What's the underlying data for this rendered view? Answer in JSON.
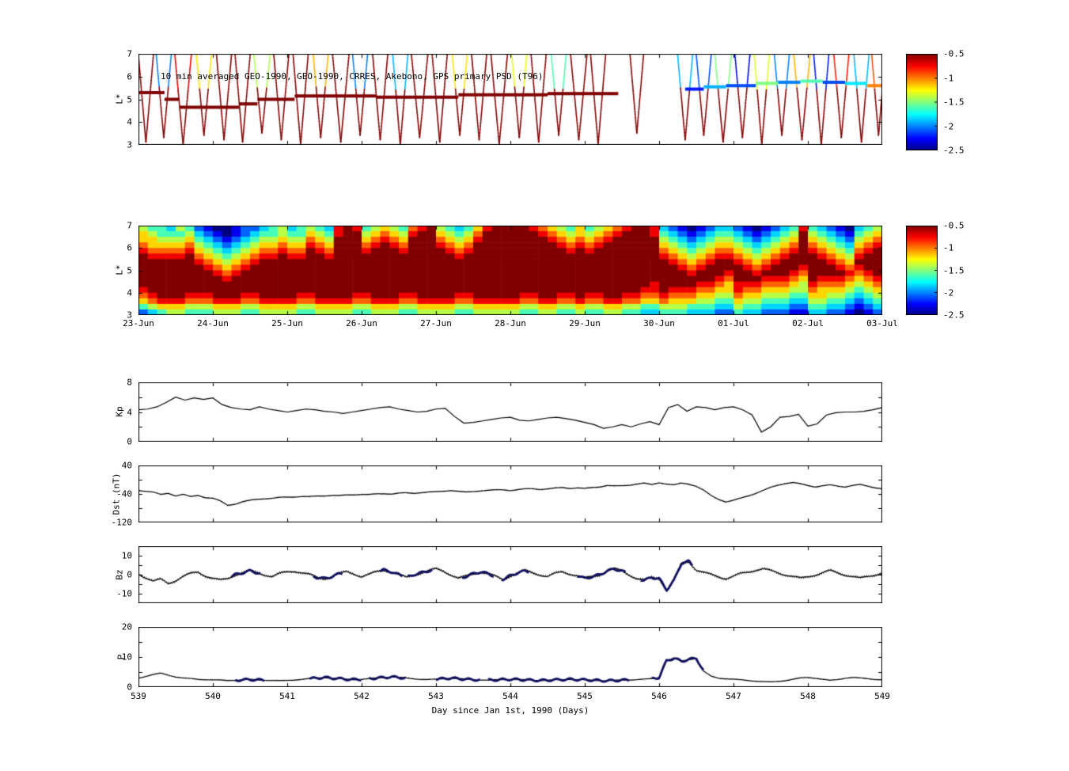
{
  "figure": {
    "background": "#ffffff"
  },
  "colormap": {
    "name": "jet",
    "range": [
      -2.5,
      -0.5
    ]
  },
  "colorbars": [
    {
      "ticks": [
        -0.5,
        -1,
        -1.5,
        -2,
        -2.5
      ]
    },
    {
      "ticks": [
        -0.5,
        -1,
        -1.5,
        -2,
        -2.5
      ]
    }
  ],
  "chart_data": [
    {
      "id": "psd_scatter",
      "type": "scatter",
      "title": "10 min averaged GEO-1990, GEO-1990, CRRES, Akebono, GPS  primary PSD (T96)",
      "ylabel": "L*",
      "ylim": [
        3,
        7
      ],
      "yticks": [
        7,
        6,
        5,
        4,
        3
      ],
      "ytick_marks": [
        3,
        4,
        5,
        6,
        7
      ],
      "xlim": [
        539,
        549
      ],
      "band_segments": [
        [
          539.0,
          539.35,
          5.3,
          -0.5
        ],
        [
          539.35,
          539.55,
          5.0,
          -0.5
        ],
        [
          539.55,
          540.35,
          4.65,
          -0.5
        ],
        [
          540.35,
          540.6,
          4.8,
          -0.5
        ],
        [
          540.6,
          541.1,
          5.0,
          -0.5
        ],
        [
          541.1,
          542.2,
          5.15,
          -0.5
        ],
        [
          542.2,
          543.3,
          5.1,
          -0.5
        ],
        [
          543.3,
          544.5,
          5.2,
          -0.5
        ],
        [
          544.5,
          545.45,
          5.25,
          -0.5
        ],
        [
          546.35,
          546.6,
          5.45,
          -2.2
        ],
        [
          546.6,
          546.9,
          5.55,
          -1.9
        ],
        [
          546.9,
          547.3,
          5.6,
          -2.1
        ],
        [
          547.3,
          547.6,
          5.7,
          -1.5
        ],
        [
          547.6,
          547.9,
          5.75,
          -2.0
        ],
        [
          547.9,
          548.2,
          5.8,
          -1.6
        ],
        [
          548.2,
          548.5,
          5.75,
          -2.1
        ],
        [
          548.5,
          548.8,
          5.7,
          -1.8
        ],
        [
          548.8,
          549.0,
          5.6,
          -1.0
        ]
      ],
      "orbits": [
        [
          539.1,
          0.11,
          3.1,
          -0.5,
          -0.5
        ],
        [
          539.34,
          0.11,
          3.3,
          -0.5,
          -2.0
        ],
        [
          539.6,
          0.12,
          3.0,
          -0.5,
          -0.7
        ],
        [
          539.88,
          0.11,
          3.4,
          -0.5,
          -1.2
        ],
        [
          540.15,
          0.11,
          3.2,
          -0.5,
          -0.5
        ],
        [
          540.4,
          0.11,
          3.1,
          -0.5,
          -0.5
        ],
        [
          540.66,
          0.12,
          3.5,
          -0.5,
          -1.4
        ],
        [
          540.92,
          0.11,
          3.2,
          -0.5,
          -0.5
        ],
        [
          541.18,
          0.11,
          3.0,
          -0.5,
          -0.5
        ],
        [
          541.45,
          0.11,
          3.3,
          -0.5,
          -1.1
        ],
        [
          541.72,
          0.12,
          3.1,
          -0.5,
          -0.5
        ],
        [
          541.98,
          0.11,
          3.4,
          -0.5,
          -2.0
        ],
        [
          542.25,
          0.11,
          3.2,
          -0.5,
          -0.5
        ],
        [
          542.52,
          0.11,
          3.0,
          -0.5,
          -1.9
        ],
        [
          542.78,
          0.12,
          3.3,
          -0.5,
          -0.5
        ],
        [
          543.05,
          0.11,
          3.1,
          -0.5,
          -0.5
        ],
        [
          543.32,
          0.11,
          3.4,
          -0.5,
          -1.2
        ],
        [
          543.58,
          0.11,
          3.2,
          -0.5,
          -0.5
        ],
        [
          543.85,
          0.12,
          3.0,
          -0.5,
          -0.5
        ],
        [
          544.12,
          0.11,
          3.3,
          -0.5,
          -1.3
        ],
        [
          544.38,
          0.11,
          3.1,
          -0.5,
          -0.5
        ],
        [
          544.65,
          0.11,
          3.4,
          -0.5,
          -1.6
        ],
        [
          544.92,
          0.12,
          3.2,
          -0.5,
          -0.5
        ],
        [
          545.18,
          0.11,
          3.0,
          -0.5,
          -0.5
        ],
        [
          545.7,
          0.1,
          3.5,
          -0.5,
          -0.5
        ],
        [
          546.35,
          0.11,
          3.2,
          -0.5,
          -1.9
        ],
        [
          546.6,
          0.11,
          3.4,
          -0.5,
          -2.1
        ],
        [
          546.86,
          0.12,
          3.1,
          -0.5,
          -1.5
        ],
        [
          547.12,
          0.11,
          3.3,
          -0.5,
          -2.3
        ],
        [
          547.38,
          0.11,
          3.0,
          -0.5,
          -1.3
        ],
        [
          547.65,
          0.11,
          3.4,
          -0.5,
          -2.0
        ],
        [
          547.92,
          0.12,
          3.2,
          -0.5,
          -1.1
        ],
        [
          548.18,
          0.11,
          3.0,
          -0.5,
          -2.2
        ],
        [
          548.45,
          0.11,
          3.3,
          -0.5,
          -0.8
        ],
        [
          548.72,
          0.11,
          3.1,
          -0.5,
          -1.9
        ],
        [
          548.95,
          0.1,
          3.4,
          -0.5,
          -0.9
        ]
      ]
    },
    {
      "id": "psd_heatmap",
      "type": "heatmap",
      "ylabel": "L*",
      "ylim": [
        3,
        7
      ],
      "yticks": [
        7,
        6,
        5,
        4,
        3
      ],
      "ytick_marks": [
        3,
        4,
        5,
        6,
        7
      ],
      "xlim": [
        539,
        549
      ],
      "xtick_labels": [
        "23-Jun",
        "24-Jun",
        "25-Jun",
        "26-Jun",
        "27-Jun",
        "28-Jun",
        "29-Jun",
        "30-Jun",
        "01-Jul",
        "02-Jul",
        "03-Jul"
      ],
      "value_min": -2.5,
      "value_max": -0.5,
      "rows": [
        "54435421001223453454389845654789543468999987654645678998321012332101234843210345",
        "65444532101234454465489956765899654579999998765656789998432123443212345954321456",
        "66555643212345565576599967876999765689999999876767899999543234554323456965432567",
        "76666754323456676687699978987999876799999999987878999999654345665434567976543678",
        "87777865434567787798799989998999987899999999998989999999765456776545678987654789",
        "98888976545678898899899999999999998999999999999999999999876567887656789998765899",
        "99999987656789999999999999999999999999999999999999999999987678998767899999876999",
        "99999998767899999999999999999999999999999999999999999999998789999878999899987899",
        "99999999878999999999999999999999999999999999999999999999999899989989998799998789",
        "99999999989999999999999999999999999999999999999999999999999999879998887698887678",
        "99999999999999999999999999999999999999999999999999999998999988768887776587776567",
        "89999999999999999999999999999999999999999999999999999988988877668776665576665456",
        "78999888999889999889999889998899998899999889988988998877877766557665554466554345",
        "67888777888778888778888778887788887788888778877877887766766655446554443355443234",
        "45666555666556666556666556665566665566666556655655665544555444335443332244332123",
        "23455444555445555445555445554455554455555445544544554433444333224332221133221012"
      ]
    },
    {
      "id": "kp",
      "type": "line",
      "ylabel": "Kp",
      "ylim": [
        0,
        8
      ],
      "yticks": [
        8,
        4,
        0
      ],
      "ytick_marks": [
        0,
        2,
        4,
        6,
        8
      ],
      "xlim": [
        539,
        549
      ],
      "x0": 539,
      "dx": 0.125,
      "values": [
        4.3,
        4.4,
        4.7,
        5.3,
        6.0,
        5.6,
        5.9,
        5.7,
        5.9,
        5.0,
        4.6,
        4.4,
        4.3,
        4.7,
        4.4,
        4.2,
        4.0,
        4.2,
        4.4,
        4.3,
        4.1,
        4.0,
        3.8,
        4.0,
        4.2,
        4.4,
        4.6,
        4.7,
        4.4,
        4.2,
        4.0,
        4.1,
        4.4,
        4.5,
        3.4,
        2.5,
        2.6,
        2.8,
        3.0,
        3.2,
        3.3,
        2.9,
        2.8,
        3.0,
        3.2,
        3.3,
        3.1,
        2.9,
        2.6,
        2.3,
        1.8,
        2.0,
        2.3,
        2.0,
        2.4,
        2.7,
        2.3,
        4.6,
        5.0,
        4.1,
        4.7,
        4.6,
        4.3,
        4.6,
        4.7,
        4.3,
        3.6,
        1.3,
        2.0,
        3.3,
        3.4,
        3.7,
        2.1,
        2.4,
        3.6,
        3.9,
        4.0,
        4.0,
        4.1,
        4.3,
        4.6
      ]
    },
    {
      "id": "dst",
      "type": "line",
      "ylabel": "Dst (nT)",
      "ylim": [
        -120,
        40
      ],
      "yticks": [
        40,
        -40,
        -120
      ],
      "ytick_marks": [
        40,
        0,
        -40,
        -80,
        -120
      ],
      "xlim": [
        539,
        549
      ],
      "x0": 539,
      "dx": 0.1,
      "values": [
        -30,
        -32,
        -35,
        -42,
        -38,
        -45,
        -41,
        -48,
        -44,
        -50,
        -52,
        -60,
        -72,
        -68,
        -62,
        -58,
        -55,
        -53,
        -52,
        -50,
        -49,
        -48,
        -47,
        -48,
        -46,
        -45,
        -44,
        -45,
        -43,
        -42,
        -41,
        -42,
        -40,
        -39,
        -40,
        -38,
        -37,
        -38,
        -36,
        -35,
        -34,
        -32,
        -30,
        -33,
        -35,
        -33,
        -31,
        -30,
        -29,
        -28,
        -30,
        -28,
        -26,
        -25,
        -27,
        -26,
        -24,
        -22,
        -24,
        -23,
        -25,
        -22,
        -20,
        -16,
        -18,
        -17,
        -15,
        -12,
        -10,
        -14,
        -8,
        -12,
        -15,
        -10,
        -12,
        -18,
        -30,
        -45,
        -55,
        -62,
        -58,
        -52,
        -45,
        -38,
        -30,
        -22,
        -15,
        -10,
        -8,
        -12,
        -16,
        -20,
        -17,
        -15,
        -18,
        -20,
        -16,
        -14,
        -18,
        -22,
        -25
      ]
    },
    {
      "id": "bz",
      "type": "line",
      "ylabel": "Bz",
      "ylim": [
        -15,
        15
      ],
      "yticks": [
        10,
        0,
        -10
      ],
      "ytick_marks": [
        -10,
        -5,
        0,
        5,
        10
      ],
      "xlim": [
        539,
        549
      ],
      "x0": 539,
      "dx": 0.1,
      "values": [
        0.5,
        -1.5,
        -3.5,
        -2.5,
        -4.5,
        -3.0,
        -1.0,
        0.5,
        1.5,
        -0.5,
        -2.0,
        -3.0,
        -2.0,
        0.0,
        1.0,
        2.0,
        1.0,
        0.0,
        -1.0,
        0.5,
        1.5,
        2.0,
        1.0,
        0.0,
        -1.5,
        -2.0,
        -1.0,
        0.5,
        1.5,
        0.5,
        -1.0,
        0.0,
        1.5,
        2.5,
        1.5,
        0.0,
        -1.5,
        0.0,
        1.0,
        2.0,
        3.0,
        2.0,
        0.0,
        -2.0,
        -1.0,
        0.5,
        1.5,
        0.5,
        -1.0,
        -2.5,
        -0.5,
        1.0,
        2.0,
        1.0,
        0.0,
        -1.0,
        0.5,
        1.5,
        0.5,
        -0.5,
        -2.0,
        -1.0,
        0.0,
        2.0,
        3.0,
        2.0,
        0.0,
        -2.0,
        -3.0,
        -1.5,
        -2.0,
        -8.0,
        -3.0,
        6.0,
        7.0,
        2.5,
        1.0,
        0.0,
        -1.0,
        -2.0,
        -1.0,
        0.5,
        1.5,
        2.5,
        3.0,
        2.0,
        1.0,
        0.0,
        -1.0,
        -2.0,
        -1.0,
        0.0,
        1.0,
        2.0,
        1.0,
        0.0,
        -1.0,
        -2.0,
        -1.0,
        0.0,
        1.0
      ],
      "highlight_color": "#101060",
      "highlight_segments": [
        [
          540.25,
          540.65
        ],
        [
          541.35,
          541.75
        ],
        [
          542.25,
          542.55
        ],
        [
          542.62,
          542.95
        ],
        [
          543.35,
          543.78
        ],
        [
          543.88,
          544.25
        ],
        [
          544.9,
          545.55
        ],
        [
          545.75,
          546.45
        ]
      ]
    },
    {
      "id": "p",
      "type": "line",
      "ylabel": "P",
      "ylim": [
        0,
        20
      ],
      "yticks": [
        20,
        10,
        0
      ],
      "ytick_marks": [
        0,
        5,
        10,
        15,
        20
      ],
      "xlim": [
        539,
        549
      ],
      "x0": 539,
      "dx": 0.1,
      "values": [
        3.0,
        3.6,
        4.2,
        4.6,
        4.0,
        3.4,
        3.0,
        2.8,
        2.6,
        2.5,
        2.4,
        2.3,
        2.2,
        2.3,
        2.4,
        2.5,
        2.4,
        2.3,
        2.2,
        2.1,
        2.2,
        2.4,
        2.6,
        2.8,
        3.0,
        3.2,
        3.0,
        2.8,
        2.6,
        2.5,
        2.6,
        2.8,
        3.0,
        3.2,
        3.4,
        3.2,
        3.0,
        2.8,
        2.6,
        2.5,
        2.6,
        2.8,
        3.0,
        2.8,
        2.6,
        2.5,
        2.4,
        2.3,
        2.4,
        2.5,
        2.6,
        2.5,
        2.4,
        2.3,
        2.2,
        2.3,
        2.4,
        2.5,
        2.6,
        2.5,
        2.4,
        2.3,
        2.2,
        2.1,
        2.2,
        2.3,
        2.4,
        2.5,
        2.6,
        2.8,
        3.2,
        8.8,
        9.6,
        8.6,
        9.2,
        9.6,
        5.2,
        3.6,
        3.0,
        2.8,
        2.6,
        2.4,
        2.2,
        2.0,
        1.8,
        1.7,
        1.9,
        2.2,
        2.6,
        3.0,
        3.2,
        3.0,
        2.6,
        2.2,
        2.5,
        3.0,
        3.2,
        3.0,
        2.8,
        2.6,
        2.5
      ],
      "highlight_color": "#101060",
      "highlight_segments": [
        [
          540.3,
          540.7
        ],
        [
          541.3,
          542.0
        ],
        [
          542.1,
          542.6
        ],
        [
          543.0,
          543.6
        ],
        [
          543.7,
          545.6
        ],
        [
          545.9,
          546.6
        ]
      ],
      "xticks": [
        539,
        540,
        541,
        542,
        543,
        544,
        545,
        546,
        547,
        548,
        549
      ],
      "xlabel": "Day since Jan 1st, 1990 (Days)"
    }
  ]
}
